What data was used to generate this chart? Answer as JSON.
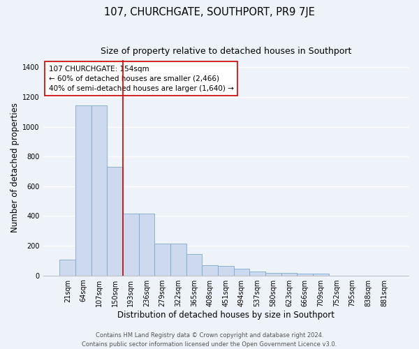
{
  "title": "107, CHURCHGATE, SOUTHPORT, PR9 7JE",
  "subtitle": "Size of property relative to detached houses in Southport",
  "xlabel": "Distribution of detached houses by size in Southport",
  "ylabel": "Number of detached properties",
  "bar_labels": [
    "21sqm",
    "64sqm",
    "107sqm",
    "150sqm",
    "193sqm",
    "236sqm",
    "279sqm",
    "322sqm",
    "365sqm",
    "408sqm",
    "451sqm",
    "494sqm",
    "537sqm",
    "580sqm",
    "623sqm",
    "666sqm",
    "709sqm",
    "752sqm",
    "795sqm",
    "838sqm",
    "881sqm"
  ],
  "bar_values": [
    105,
    1145,
    1145,
    730,
    415,
    415,
    215,
    215,
    145,
    70,
    65,
    45,
    27,
    17,
    15,
    10,
    10,
    0,
    0,
    0,
    0
  ],
  "bar_color": "#ccd9ee",
  "bar_edge_color": "#7aaad0",
  "vline_color": "#cc0000",
  "vline_x": 3.5,
  "annotation_title": "107 CHURCHGATE: 154sqm",
  "annotation_line1": "← 60% of detached houses are smaller (2,466)",
  "annotation_line2": "40% of semi-detached houses are larger (1,640) →",
  "annotation_box_color": "#ffffff",
  "annotation_box_edge": "#cc0000",
  "ylim": [
    0,
    1450
  ],
  "yticks": [
    0,
    200,
    400,
    600,
    800,
    1000,
    1200,
    1400
  ],
  "footer_line1": "Contains HM Land Registry data © Crown copyright and database right 2024.",
  "footer_line2": "Contains public sector information licensed under the Open Government Licence v3.0.",
  "background_color": "#eef2f9",
  "grid_color": "#ffffff",
  "title_fontsize": 10.5,
  "subtitle_fontsize": 9,
  "axis_label_fontsize": 8.5,
  "tick_fontsize": 7,
  "annotation_fontsize": 7.5,
  "footer_fontsize": 6
}
